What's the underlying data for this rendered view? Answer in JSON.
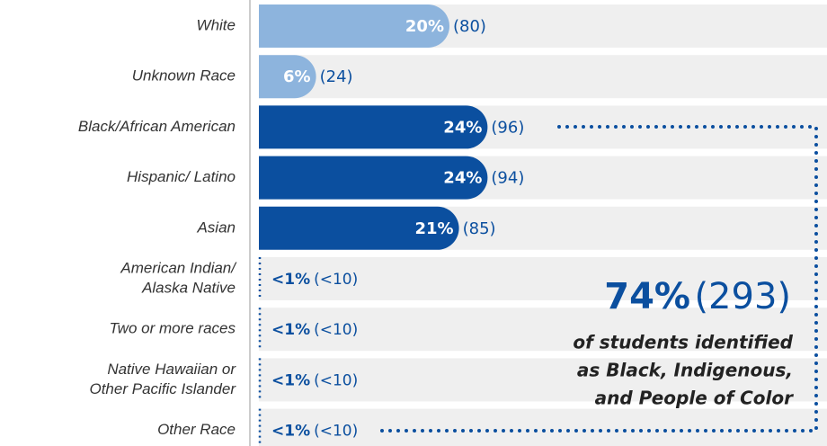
{
  "chart_data": {
    "type": "bar",
    "categories": [
      [
        "White"
      ],
      [
        "Unknown Race"
      ],
      [
        "Black/African American"
      ],
      [
        "Hispanic/ Latino"
      ],
      [
        "Asian"
      ],
      [
        "American Indian/",
        "Alaska Native"
      ],
      [
        "Two or more races"
      ],
      [
        "Native Hawaiian or",
        "Other Pacific Islander"
      ],
      [
        "Other Race"
      ]
    ],
    "values": [
      20,
      6,
      24,
      24,
      21,
      0.5,
      0.5,
      0.5,
      0.5
    ],
    "value_labels": [
      "20%",
      "6%",
      "24%",
      "24%",
      "21%",
      "<1%",
      "<1%",
      "<1%",
      "<1%"
    ],
    "count_labels": [
      "(80)",
      "(24)",
      "(96)",
      "(94)",
      "(85)",
      "(<10)",
      "(<10)",
      "(<10)",
      "(<10)"
    ],
    "colors": [
      "#8db4dd",
      "#8db4dd",
      "#0b4f9f",
      "#0b4f9f",
      "#0b4f9f",
      "#0b4f9f",
      "#0b4f9f",
      "#0b4f9f",
      "#0b4f9f"
    ],
    "annotation": {
      "value": "74%",
      "count": "(293)",
      "lines": [
        "of students identified",
        "as Black, Indigenous,",
        "and People of Color"
      ]
    }
  }
}
